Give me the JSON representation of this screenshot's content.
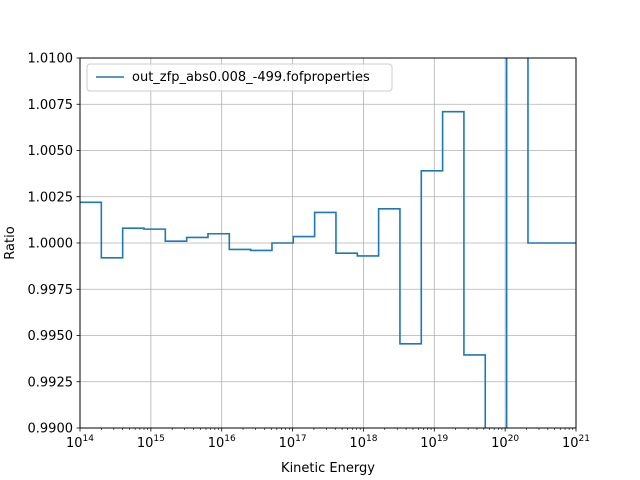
{
  "chart_data": {
    "type": "line",
    "drawstyle": "steps",
    "xscale": "log",
    "xlim": [
      100000000000000.0,
      1e+21
    ],
    "ylim": [
      0.99,
      1.01
    ],
    "xlabel": "Kinetic Energy",
    "ylabel": "Ratio",
    "grid": true,
    "legend_position": "upper-left",
    "yticks": [
      "0.9900",
      "0.9925",
      "0.9950",
      "0.9975",
      "1.0000",
      "1.0025",
      "1.0050",
      "1.0075",
      "1.0100"
    ],
    "xticks_exponents": [
      "14",
      "15",
      "16",
      "17",
      "18",
      "19",
      "20",
      "21"
    ],
    "xtick_base": "10",
    "series": [
      {
        "name": "out_zfp_abs0.008_-499.fofproperties",
        "color": "#1f77b4",
        "bin_edges": [
          100000000000000.0,
          200000000000000.0,
          400000000000000.0,
          800000000000000.0,
          1600000000000000.0,
          3200000000000000.0,
          6400000000000000.0,
          1.28e+16,
          2.56e+16,
          5.12e+16,
          1.024e+17,
          2.048e+17,
          4.096e+17,
          8.192e+17,
          1.6384e+18,
          3.2768e+18,
          6.5536e+18,
          1.31e+19,
          2.62e+19,
          5.24e+19,
          1.05e+20,
          2.1e+20,
          1e+21
        ],
        "values": [
          1.0022,
          0.9992,
          1.0008,
          1.00075,
          1.0001,
          1.0003,
          1.0005,
          0.99965,
          0.9996,
          1.0,
          1.00035,
          1.00165,
          0.99945,
          0.9993,
          1.00185,
          0.99455,
          1.0039,
          1.0071,
          0.99395,
          0.9895,
          1.03,
          1.0
        ]
      }
    ]
  }
}
